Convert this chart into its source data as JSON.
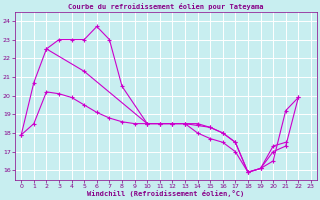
{
  "title": "Courbe du refroidissement éolien pour Tateyama",
  "xlabel": "Windchill (Refroidissement éolien,°C)",
  "bg_color": "#c8eef0",
  "grid_color": "#ffffff",
  "line_color": "#cc00cc",
  "xlim": [
    -0.5,
    23.5
  ],
  "ylim": [
    15.5,
    24.5
  ],
  "yticks": [
    16,
    17,
    18,
    19,
    20,
    21,
    22,
    23,
    24
  ],
  "xticks": [
    0,
    1,
    2,
    3,
    4,
    5,
    6,
    7,
    8,
    9,
    10,
    11,
    12,
    13,
    14,
    15,
    16,
    17,
    18,
    19,
    20,
    21,
    22,
    23
  ],
  "line1_x": [
    0,
    1,
    2,
    3,
    4,
    5,
    6,
    7,
    8,
    10,
    11,
    12,
    13,
    14,
    15,
    16,
    17,
    18,
    19,
    20,
    21,
    22
  ],
  "line1_y": [
    17.9,
    20.7,
    22.5,
    23.0,
    23.0,
    23.0,
    23.7,
    23.0,
    20.5,
    18.5,
    18.5,
    18.5,
    18.5,
    18.0,
    17.7,
    17.5,
    17.0,
    15.9,
    16.1,
    16.5,
    19.2,
    19.9
  ],
  "line2_x": [
    0,
    1,
    2,
    3,
    4,
    5,
    6,
    7,
    8,
    9,
    10,
    11,
    12,
    13,
    14,
    15,
    16,
    17,
    18,
    19,
    20,
    21
  ],
  "line2_y": [
    17.9,
    18.5,
    20.2,
    20.1,
    19.9,
    19.5,
    19.1,
    18.8,
    18.6,
    18.5,
    18.5,
    18.5,
    18.5,
    18.5,
    18.4,
    18.3,
    18.0,
    17.5,
    15.9,
    16.1,
    17.3,
    17.5
  ],
  "line3_x": [
    2,
    5,
    10,
    11,
    12,
    13,
    14,
    15,
    16,
    17,
    18,
    19,
    20,
    21,
    22
  ],
  "line3_y": [
    22.5,
    21.3,
    18.5,
    18.5,
    18.5,
    18.5,
    18.5,
    18.3,
    18.0,
    17.5,
    15.9,
    16.1,
    17.0,
    17.3,
    19.9
  ]
}
